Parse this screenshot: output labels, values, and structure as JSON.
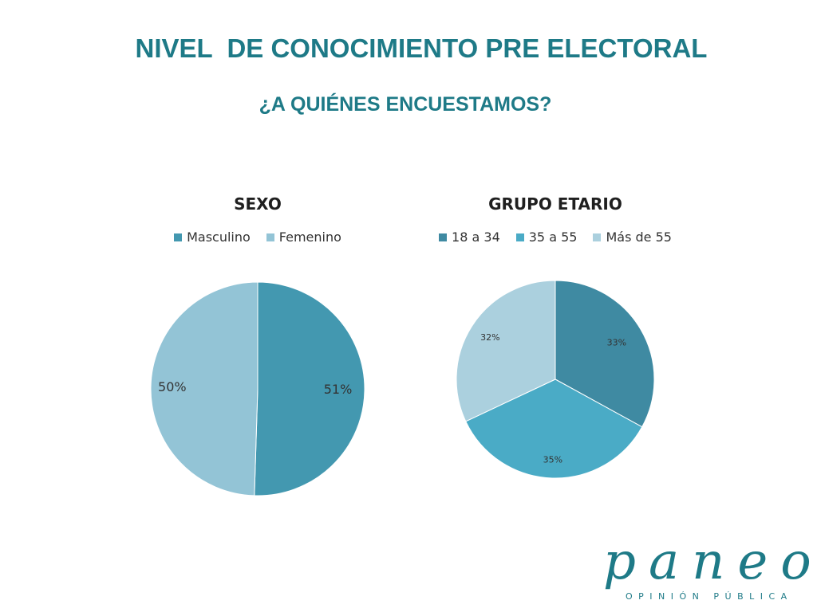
{
  "header": {
    "title": "NIVEL  DE CONOCIMIENTO PRE ELECTORAL",
    "subtitle": "¿A QUIÉNES ENCUESTAMOS?"
  },
  "logo": {
    "word": "paneo",
    "tagline": "OPINIÓN PÚBLICA"
  },
  "chart_data": [
    {
      "type": "pie",
      "title": "SEXO",
      "categories": [
        "Masculino",
        "Femenino"
      ],
      "values": [
        51,
        50
      ],
      "labels": [
        "51%",
        "50%"
      ],
      "colors": [
        "#4398b0",
        "#93c4d6"
      ],
      "legend": "top",
      "start_angle_deg": 0,
      "direction": "clockwise"
    },
    {
      "type": "pie",
      "title": "GRUPO ETARIO",
      "categories": [
        "18 a 34",
        "35 a 55",
        "Más de 55"
      ],
      "values": [
        33,
        35,
        32
      ],
      "labels": [
        "33%",
        "35%",
        "32%"
      ],
      "colors": [
        "#3f8aa2",
        "#4aabc6",
        "#abd0de"
      ],
      "legend": "top",
      "start_angle_deg": 0,
      "direction": "clockwise"
    }
  ]
}
